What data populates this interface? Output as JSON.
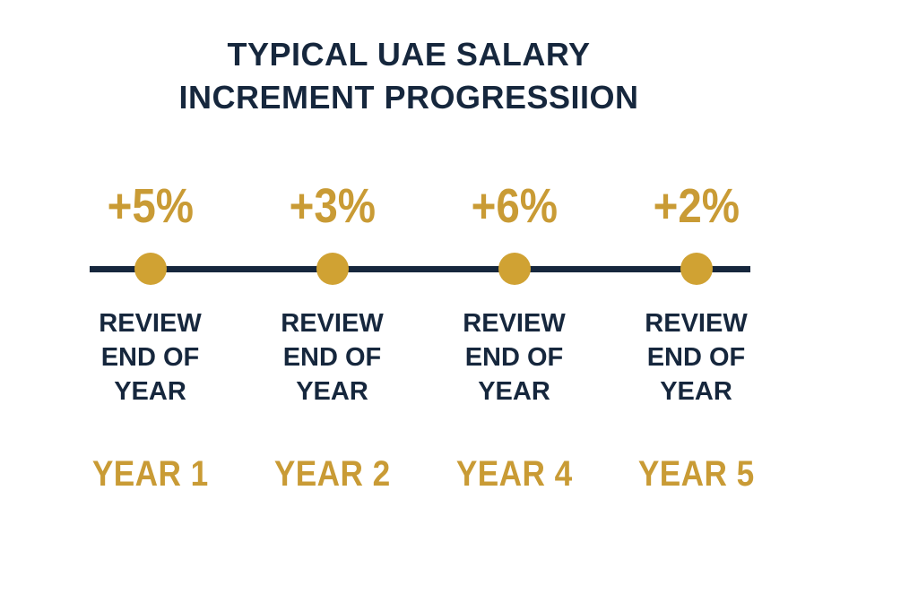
{
  "title": {
    "line1": "TYPICAL UAE SALARY",
    "line2": "INCREMENT PROGRESSIION"
  },
  "colors": {
    "navy": "#16273D",
    "gold": "#C99B35",
    "gold_dot": "#D0A233",
    "background": "#FFFFFF"
  },
  "columns": [
    {
      "increment": "+5%",
      "review": [
        "REVIEW",
        "END OF",
        "YEAR"
      ],
      "year": "YEAR 1"
    },
    {
      "increment": "+3%",
      "review": [
        "REVIEW",
        "END OF",
        "YEAR"
      ],
      "year": "YEAR 2"
    },
    {
      "increment": "+6%",
      "review": [
        "REVIEW",
        "END OF",
        "YEAR"
      ],
      "year": "YEAR 4"
    },
    {
      "increment": "+2%",
      "review": [
        "REVIEW",
        "END OF",
        "YEAR"
      ],
      "year": "YEAR 5"
    }
  ],
  "chart_data": {
    "type": "table",
    "title": "TYPICAL UAE SALARY INCREMENT PROGRESSIION",
    "categories": [
      "YEAR 1",
      "YEAR 2",
      "YEAR 4",
      "YEAR 5"
    ],
    "values": [
      5,
      3,
      6,
      2
    ],
    "value_unit": "percent salary increment",
    "annotations": [
      "REVIEW END OF YEAR at each timeline marker"
    ]
  }
}
